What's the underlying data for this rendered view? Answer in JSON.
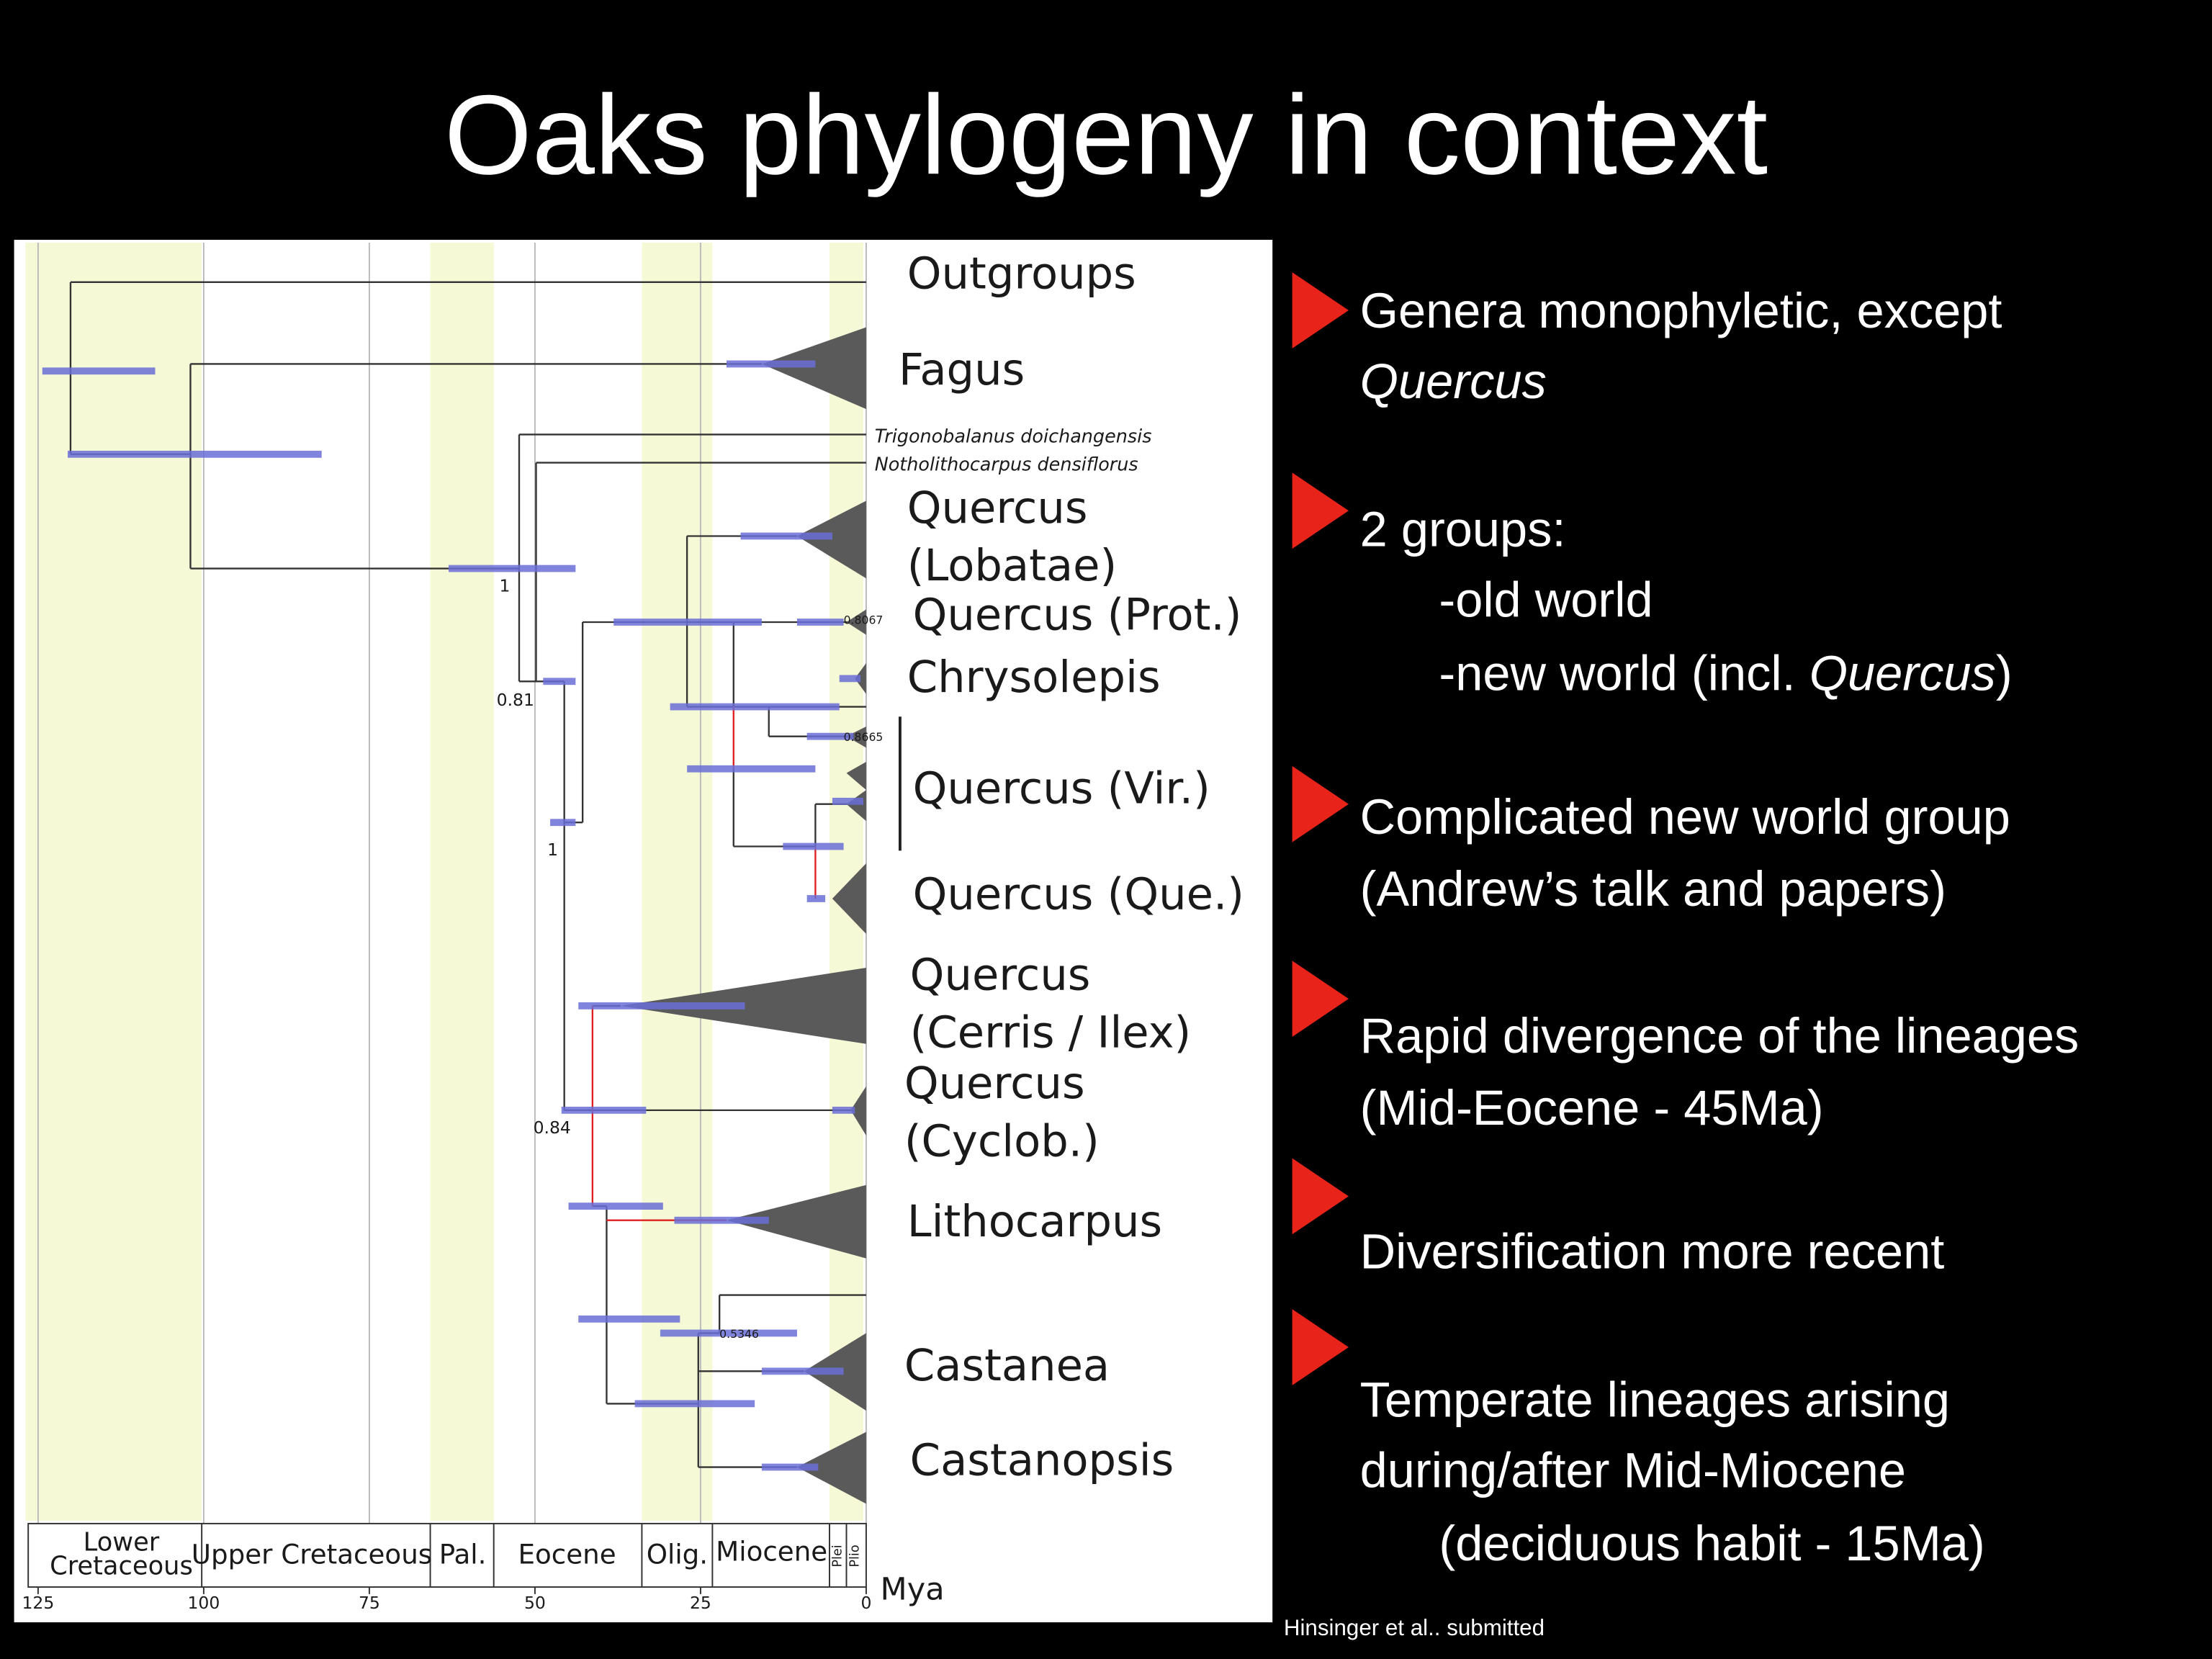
{
  "title": "Oaks phylogeny in context",
  "figure": {
    "taxa": [
      {
        "lines": [
          "Outgroups"
        ]
      },
      {
        "lines": [
          "Fagus"
        ]
      },
      {
        "lines": [
          "Trigonobalanus doichangensis"
        ],
        "italic": true
      },
      {
        "lines": [
          "Notholithocarpus  densiflorus"
        ],
        "italic": true
      },
      {
        "lines": [
          "Quercus",
          "(Lobatae)"
        ]
      },
      {
        "lines": [
          "Quercus (Prot.)"
        ]
      },
      {
        "lines": [
          "Chrysolepis"
        ]
      },
      {
        "lines": [
          "Quercus (Vir.)"
        ]
      },
      {
        "lines": [
          "Quercus (Que.)"
        ]
      },
      {
        "lines": [
          "Quercus",
          "(Cerris / Ilex)"
        ]
      },
      {
        "lines": [
          "Quercus",
          "(Cyclob.)"
        ]
      },
      {
        "lines": [
          "Lithocarpus"
        ]
      },
      {
        "lines": [
          "Castanea"
        ]
      },
      {
        "lines": [
          "Castanopsis"
        ]
      }
    ],
    "support_values": [
      1,
      0.81,
      1,
      0.84,
      0.8067,
      0.8665,
      0.5346
    ],
    "periods": [
      {
        "lines": [
          "Lower",
          "Cretaceous"
        ]
      },
      {
        "lines": [
          "Upper Cretaceous"
        ]
      },
      {
        "lines": [
          "Pal."
        ]
      },
      {
        "lines": [
          "Eocene"
        ]
      },
      {
        "lines": [
          "Olig."
        ]
      },
      {
        "lines": [
          "Miocene"
        ]
      },
      {
        "lines": [
          "Plei"
        ]
      },
      {
        "lines": [
          "Plio"
        ]
      }
    ],
    "axis_ticks": [
      125,
      100,
      75,
      50,
      25,
      0
    ],
    "axis_unit": "Mya"
  },
  "bullets": [
    {
      "lines": [
        [
          {
            "text": "Genera monophyletic, except"
          }
        ],
        [
          {
            "text": "Quercus",
            "italic": true
          }
        ]
      ]
    },
    {
      "lines": [
        [
          {
            "text": "2 groups:"
          }
        ],
        [
          {
            "text": "-old world"
          }
        ],
        [
          {
            "text": "-new world (incl. "
          },
          {
            "text": "Quercus",
            "italic": true
          },
          {
            "text": ")"
          }
        ]
      ]
    },
    {
      "lines": [
        [
          {
            "text": "Complicated new world group"
          }
        ],
        [
          {
            "text": "(Andrew’s talk and papers)"
          }
        ]
      ]
    },
    {
      "lines": [
        [
          {
            "text": "Rapid divergence of the lineages"
          }
        ],
        [
          {
            "text": "(Mid-Eocene - 45Ma)"
          }
        ]
      ]
    },
    {
      "lines": [
        [
          {
            "text": "Diversification more recent"
          }
        ]
      ]
    },
    {
      "lines": [
        [
          {
            "text": "Temperate lineages arising"
          }
        ],
        [
          {
            "text": "during/after Mid-Miocene"
          }
        ],
        [
          {
            "text": "(deciduous habit - 15Ma)"
          }
        ]
      ]
    }
  ],
  "citation": "Hinsinger et al.. submitted"
}
